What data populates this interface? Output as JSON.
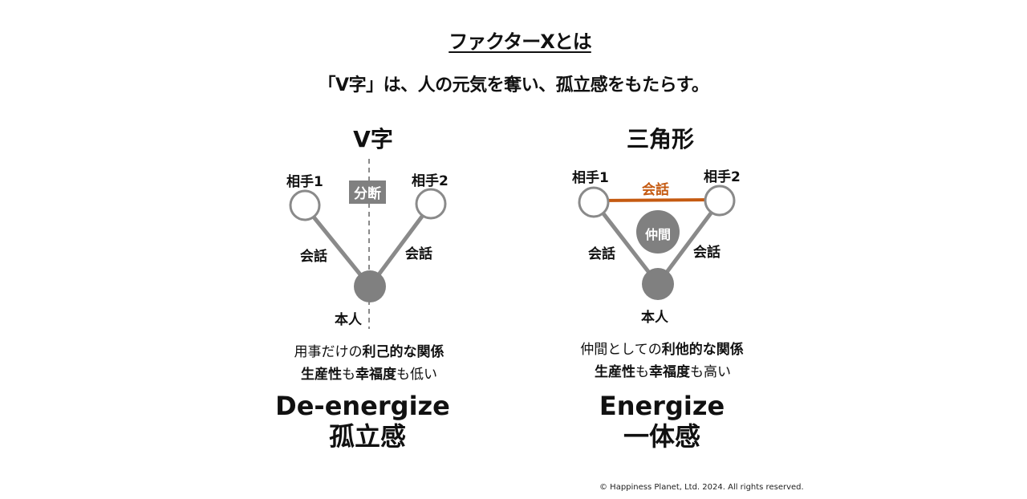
{
  "title": "ファクターXとは",
  "subtitle": "「V字」は、人の元気を奪い、孤立感をもたらす。",
  "left": {
    "heading": "V字",
    "partner1": "相手1",
    "partner2": "相手2",
    "divide_badge": "分断",
    "talk_left": "会話",
    "talk_right": "会話",
    "self": "本人",
    "desc_line1_plain": "用事だけの",
    "desc_line1_bold": "利己的な関係",
    "desc_line2_bold1": "生産性",
    "desc_line2_plain1": "も",
    "desc_line2_bold2": "幸福度",
    "desc_line2_plain2": "も低い",
    "big_en": "De-energize",
    "big_jp": "孤立感"
  },
  "right": {
    "heading": "三角形",
    "partner1": "相手1",
    "partner2": "相手2",
    "talk_top": "会話",
    "companion": "仲間",
    "talk_left": "会話",
    "talk_right": "会話",
    "self": "本人",
    "desc_line1_plain": "仲間としての",
    "desc_line1_bold": "利他的な関係",
    "desc_line2_bold1": "生産性",
    "desc_line2_plain1": "も",
    "desc_line2_bold2": "幸福度",
    "desc_line2_plain2": "も高い",
    "big_en": "Energize",
    "big_jp": "一体感"
  },
  "copyright": "© Happiness Planet, Ltd. 2024. All rights reserved.",
  "colors": {
    "node_gray": "#808080",
    "line_gray": "#8a8a8a",
    "accent_orange": "#c55a11"
  }
}
